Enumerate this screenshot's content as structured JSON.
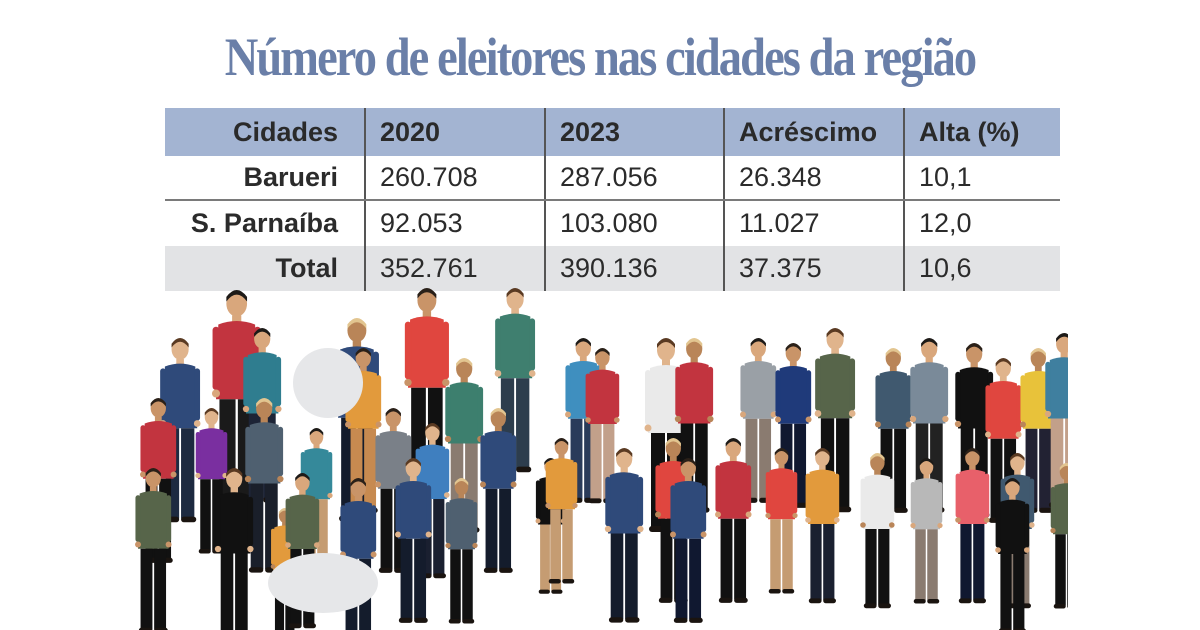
{
  "title": "Número de eleitores nas cidades da região",
  "table": {
    "headers": [
      "Cidades",
      "2020",
      "2023",
      "Acréscimo",
      "Alta (%)"
    ],
    "rows": [
      [
        "Barueri",
        "260.708",
        "287.056",
        "26.348",
        "10,1"
      ],
      [
        "S. Parnaíba",
        "92.053",
        "103.080",
        "11.027",
        "12,0"
      ],
      [
        "Total",
        "352.761",
        "390.136",
        "37.375",
        "10,6"
      ]
    ]
  },
  "illustration": "crowd-of-people",
  "colors": {
    "title": "#6a7fa8",
    "header_bg": "#a3b4d2",
    "total_bg": "#e2e3e5",
    "text": "#2b2b2b"
  },
  "chart_data": {
    "type": "table",
    "title": "Número de eleitores nas cidades da região",
    "columns": [
      "Cidades",
      "2020",
      "2023",
      "Acréscimo",
      "Alta (%)"
    ],
    "rows": [
      {
        "Cidades": "Barueri",
        "2020": 260708,
        "2023": 287056,
        "Acréscimo": 26348,
        "Alta (%)": 10.1
      },
      {
        "Cidades": "S. Parnaíba",
        "2020": 92053,
        "2023": 103080,
        "Acréscimo": 11027,
        "Alta (%)": 12.0
      },
      {
        "Cidades": "Total",
        "2020": 352761,
        "2023": 390136,
        "Acréscimo": 37375,
        "Alta (%)": 10.6
      }
    ]
  }
}
